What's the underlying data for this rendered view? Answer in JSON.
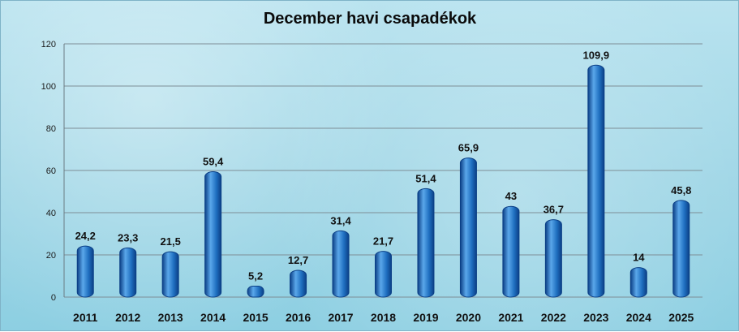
{
  "chart_data": {
    "type": "bar",
    "title": "December havi csapadékok",
    "categories": [
      "2011",
      "2012",
      "2013",
      "2014",
      "2015",
      "2016",
      "2017",
      "2018",
      "2019",
      "2020",
      "2021",
      "2022",
      "2023",
      "2024",
      "2025"
    ],
    "values": [
      24.2,
      23.3,
      21.5,
      59.4,
      5.2,
      12.7,
      31.4,
      21.7,
      51.4,
      65.9,
      43,
      36.7,
      109.9,
      14,
      45.8
    ],
    "value_labels": [
      "24,2",
      "23,3",
      "21,5",
      "59,4",
      "5,2",
      "12,7",
      "31,4",
      "21,7",
      "51,4",
      "65,9",
      "43",
      "36,7",
      "109,9",
      "14",
      "45,8"
    ],
    "ylim": [
      0,
      120
    ],
    "yticks": [
      0,
      20,
      40,
      60,
      80,
      100,
      120
    ],
    "ytick_labels": [
      "0",
      "20",
      "40",
      "60",
      "80",
      "100",
      "120"
    ],
    "grid": true,
    "legend": "none",
    "colors": {
      "bar": "#1f6fc0",
      "bar_dark": "#0b3f86",
      "bar_light": "#5aa7ea",
      "grid": "#7e8e96"
    }
  }
}
